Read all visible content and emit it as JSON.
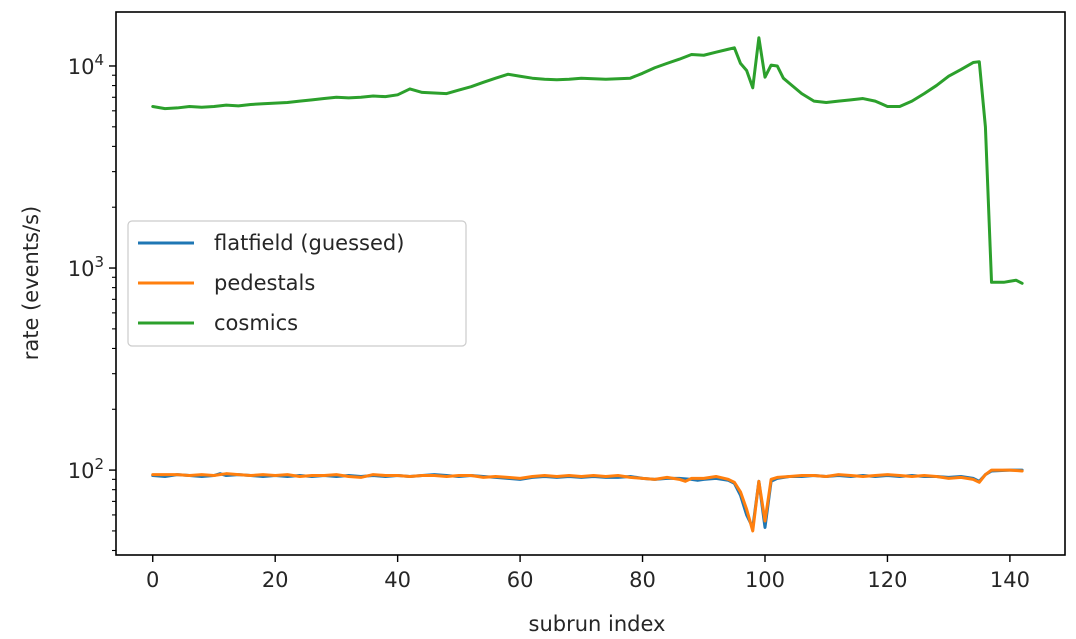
{
  "chart_data": {
    "type": "line",
    "title": "",
    "xlabel": "subrun index",
    "ylabel": "rate (events/s)",
    "xlim": [
      -6,
      149
    ],
    "ylim": [
      38,
      18500
    ],
    "yscale": "log",
    "grid": false,
    "legend_position": "center-left",
    "x_ticks": [
      0,
      20,
      40,
      60,
      80,
      100,
      120,
      140
    ],
    "x_tick_labels": [
      "0",
      "20",
      "40",
      "60",
      "80",
      "100",
      "120",
      "140"
    ],
    "y_major_ticks": [
      100,
      1000,
      10000
    ],
    "y_major_tick_labels": [
      {
        "base": "10",
        "exp": "2"
      },
      {
        "base": "10",
        "exp": "3"
      },
      {
        "base": "10",
        "exp": "4"
      }
    ],
    "series": [
      {
        "name": "flatfield (guessed)",
        "color": "#1f77b4",
        "points": [
          [
            0,
            94
          ],
          [
            2,
            93
          ],
          [
            4,
            95
          ],
          [
            6,
            94
          ],
          [
            8,
            93
          ],
          [
            10,
            94
          ],
          [
            11,
            96
          ],
          [
            12,
            94
          ],
          [
            14,
            95
          ],
          [
            16,
            94
          ],
          [
            18,
            93
          ],
          [
            20,
            94
          ],
          [
            22,
            93
          ],
          [
            24,
            94
          ],
          [
            26,
            93
          ],
          [
            28,
            94
          ],
          [
            30,
            93
          ],
          [
            32,
            94
          ],
          [
            34,
            93
          ],
          [
            36,
            94
          ],
          [
            38,
            93
          ],
          [
            40,
            94
          ],
          [
            42,
            93
          ],
          [
            44,
            94
          ],
          [
            46,
            95
          ],
          [
            48,
            94
          ],
          [
            50,
            93
          ],
          [
            52,
            94
          ],
          [
            54,
            93
          ],
          [
            56,
            92
          ],
          [
            58,
            91
          ],
          [
            60,
            90
          ],
          [
            62,
            92
          ],
          [
            64,
            93
          ],
          [
            66,
            92
          ],
          [
            68,
            93
          ],
          [
            70,
            92
          ],
          [
            72,
            93
          ],
          [
            74,
            92
          ],
          [
            76,
            92
          ],
          [
            78,
            93
          ],
          [
            80,
            91
          ],
          [
            82,
            90
          ],
          [
            84,
            91
          ],
          [
            86,
            91
          ],
          [
            88,
            90
          ],
          [
            89,
            89
          ],
          [
            90,
            90
          ],
          [
            92,
            91
          ],
          [
            94,
            89
          ],
          [
            95,
            86
          ],
          [
            96,
            75
          ],
          [
            97,
            60
          ],
          [
            98,
            52
          ],
          [
            99,
            88
          ],
          [
            100,
            52
          ],
          [
            101,
            88
          ],
          [
            102,
            91
          ],
          [
            104,
            93
          ],
          [
            106,
            93
          ],
          [
            108,
            94
          ],
          [
            110,
            93
          ],
          [
            112,
            94
          ],
          [
            114,
            93
          ],
          [
            116,
            94
          ],
          [
            118,
            93
          ],
          [
            120,
            94
          ],
          [
            122,
            93
          ],
          [
            124,
            94
          ],
          [
            126,
            93
          ],
          [
            128,
            93
          ],
          [
            130,
            92
          ],
          [
            132,
            93
          ],
          [
            134,
            91
          ],
          [
            135,
            88
          ],
          [
            136,
            95
          ],
          [
            137,
            99
          ],
          [
            140,
            100
          ],
          [
            142,
            100
          ]
        ]
      },
      {
        "name": "pedestals",
        "color": "#ff7f0e",
        "points": [
          [
            0,
            95
          ],
          [
            2,
            95
          ],
          [
            4,
            95
          ],
          [
            6,
            94
          ],
          [
            8,
            95
          ],
          [
            10,
            94
          ],
          [
            12,
            96
          ],
          [
            14,
            95
          ],
          [
            16,
            94
          ],
          [
            18,
            95
          ],
          [
            20,
            94
          ],
          [
            22,
            95
          ],
          [
            24,
            93
          ],
          [
            26,
            94
          ],
          [
            28,
            94
          ],
          [
            30,
            95
          ],
          [
            32,
            93
          ],
          [
            34,
            92
          ],
          [
            36,
            95
          ],
          [
            38,
            94
          ],
          [
            40,
            94
          ],
          [
            42,
            93
          ],
          [
            44,
            94
          ],
          [
            46,
            94
          ],
          [
            48,
            93
          ],
          [
            50,
            94
          ],
          [
            52,
            94
          ],
          [
            54,
            92
          ],
          [
            56,
            93
          ],
          [
            58,
            92
          ],
          [
            60,
            91
          ],
          [
            62,
            93
          ],
          [
            64,
            94
          ],
          [
            66,
            93
          ],
          [
            68,
            94
          ],
          [
            70,
            93
          ],
          [
            72,
            94
          ],
          [
            74,
            93
          ],
          [
            76,
            94
          ],
          [
            78,
            92
          ],
          [
            80,
            91
          ],
          [
            82,
            90
          ],
          [
            84,
            92
          ],
          [
            86,
            90
          ],
          [
            87,
            88
          ],
          [
            88,
            91
          ],
          [
            90,
            91
          ],
          [
            92,
            93
          ],
          [
            94,
            90
          ],
          [
            95,
            87
          ],
          [
            96,
            78
          ],
          [
            97,
            64
          ],
          [
            98,
            50
          ],
          [
            99,
            88
          ],
          [
            100,
            56
          ],
          [
            101,
            90
          ],
          [
            102,
            92
          ],
          [
            104,
            93
          ],
          [
            106,
            94
          ],
          [
            108,
            94
          ],
          [
            110,
            93
          ],
          [
            112,
            95
          ],
          [
            114,
            94
          ],
          [
            116,
            93
          ],
          [
            118,
            94
          ],
          [
            120,
            95
          ],
          [
            122,
            94
          ],
          [
            124,
            93
          ],
          [
            126,
            94
          ],
          [
            128,
            93
          ],
          [
            130,
            91
          ],
          [
            132,
            92
          ],
          [
            134,
            90
          ],
          [
            135,
            87
          ],
          [
            136,
            95
          ],
          [
            137,
            100
          ],
          [
            140,
            100
          ],
          [
            142,
            99
          ]
        ]
      },
      {
        "name": "cosmics",
        "color": "#2ca02c",
        "points": [
          [
            0,
            6300
          ],
          [
            2,
            6150
          ],
          [
            4,
            6200
          ],
          [
            6,
            6300
          ],
          [
            8,
            6250
          ],
          [
            10,
            6300
          ],
          [
            12,
            6400
          ],
          [
            14,
            6350
          ],
          [
            16,
            6450
          ],
          [
            18,
            6500
          ],
          [
            20,
            6550
          ],
          [
            22,
            6600
          ],
          [
            24,
            6700
          ],
          [
            26,
            6800
          ],
          [
            28,
            6900
          ],
          [
            30,
            7000
          ],
          [
            32,
            6950
          ],
          [
            34,
            7000
          ],
          [
            36,
            7100
          ],
          [
            38,
            7050
          ],
          [
            40,
            7200
          ],
          [
            42,
            7700
          ],
          [
            44,
            7400
          ],
          [
            46,
            7350
          ],
          [
            48,
            7300
          ],
          [
            50,
            7600
          ],
          [
            52,
            7900
          ],
          [
            54,
            8300
          ],
          [
            56,
            8700
          ],
          [
            58,
            9100
          ],
          [
            60,
            8900
          ],
          [
            62,
            8700
          ],
          [
            64,
            8600
          ],
          [
            66,
            8550
          ],
          [
            68,
            8600
          ],
          [
            70,
            8700
          ],
          [
            72,
            8650
          ],
          [
            74,
            8600
          ],
          [
            76,
            8650
          ],
          [
            78,
            8700
          ],
          [
            80,
            9200
          ],
          [
            82,
            9800
          ],
          [
            84,
            10300
          ],
          [
            86,
            10800
          ],
          [
            88,
            11400
          ],
          [
            90,
            11300
          ],
          [
            92,
            11700
          ],
          [
            94,
            12100
          ],
          [
            95,
            12300
          ],
          [
            96,
            10300
          ],
          [
            97,
            9500
          ],
          [
            98,
            7800
          ],
          [
            99,
            13800
          ],
          [
            100,
            8800
          ],
          [
            101,
            10100
          ],
          [
            102,
            10000
          ],
          [
            103,
            8700
          ],
          [
            104,
            8200
          ],
          [
            106,
            7300
          ],
          [
            108,
            6700
          ],
          [
            110,
            6600
          ],
          [
            112,
            6700
          ],
          [
            114,
            6800
          ],
          [
            116,
            6900
          ],
          [
            118,
            6700
          ],
          [
            119,
            6500
          ],
          [
            120,
            6300
          ],
          [
            122,
            6300
          ],
          [
            124,
            6700
          ],
          [
            126,
            7300
          ],
          [
            128,
            8000
          ],
          [
            130,
            8900
          ],
          [
            132,
            9600
          ],
          [
            134,
            10400
          ],
          [
            135,
            10500
          ],
          [
            136,
            5000
          ],
          [
            137,
            850
          ],
          [
            139,
            850
          ],
          [
            140,
            860
          ],
          [
            141,
            870
          ],
          [
            142,
            840
          ]
        ]
      }
    ]
  }
}
